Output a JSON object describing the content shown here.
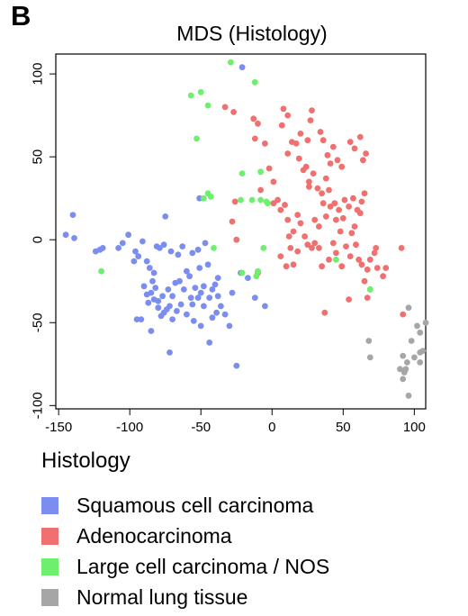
{
  "panel_label": "B",
  "chart_data": {
    "type": "scatter",
    "title": "MDS (Histology)",
    "xlabel": "",
    "ylabel": "",
    "xlim": [
      -152,
      108
    ],
    "ylim": [
      -102,
      112
    ],
    "xticks": [
      -150,
      -100,
      -50,
      0,
      50,
      100
    ],
    "xtick_labels": [
      "-150",
      "-100",
      "-50",
      "0",
      "50",
      "100"
    ],
    "yticks": [
      -100,
      -50,
      0,
      50,
      100
    ],
    "ytick_labels": [
      "-100",
      "-50",
      "0",
      "50",
      "100"
    ],
    "grid": false,
    "legend": {
      "title": "Histology",
      "placement": "bottom",
      "entries": [
        {
          "label": "Squamous cell carcinoma",
          "color": "#7b8df0"
        },
        {
          "label": "Adenocarcinoma",
          "color": "#f07070"
        },
        {
          "label": "Large cell carcinoma / NOS",
          "color": "#6ef06e"
        },
        {
          "label": "Normal lung tissue",
          "color": "#a6a6a6"
        }
      ]
    },
    "series": [
      {
        "name": "Squamous cell carcinoma",
        "color": "#7b8df0",
        "points": [
          [
            -145,
            3
          ],
          [
            -140,
            15
          ],
          [
            -139,
            1
          ],
          [
            -124,
            -7
          ],
          [
            -121,
            -6
          ],
          [
            -119,
            -5
          ],
          [
            -108,
            -5
          ],
          [
            -105,
            -2
          ],
          [
            -101,
            3
          ],
          [
            -97,
            -13
          ],
          [
            -96,
            -7
          ],
          [
            -94,
            -10
          ],
          [
            -91,
            -1
          ],
          [
            -88,
            -13
          ],
          [
            -86,
            -17
          ],
          [
            -83,
            -20
          ],
          [
            -81,
            -4
          ],
          [
            -79,
            -5
          ],
          [
            -76,
            -3
          ],
          [
            -71,
            -7
          ],
          [
            -66,
            -9
          ],
          [
            -63,
            -4
          ],
          [
            -56,
            -8
          ],
          [
            -52,
            -6
          ],
          [
            -47,
            -2
          ],
          [
            -84,
            -25
          ],
          [
            -82,
            -29
          ],
          [
            -85,
            -32
          ],
          [
            -88,
            -33
          ],
          [
            -90,
            -28
          ],
          [
            -87,
            -38
          ],
          [
            -83,
            -36
          ],
          [
            -80,
            -37
          ],
          [
            -77,
            -34
          ],
          [
            -73,
            -30
          ],
          [
            -68,
            -26
          ],
          [
            -65,
            -25
          ],
          [
            -62,
            -30
          ],
          [
            -58,
            -22
          ],
          [
            -54,
            -29
          ],
          [
            -52,
            -35
          ],
          [
            -50,
            -32
          ],
          [
            -48,
            -40
          ],
          [
            -44,
            -35
          ],
          [
            -42,
            -30
          ],
          [
            -40,
            -27
          ],
          [
            -38,
            -34
          ],
          [
            -36,
            -40
          ],
          [
            -33,
            -45
          ],
          [
            -30,
            -52
          ],
          [
            -45,
            -15
          ],
          [
            -51,
            -17
          ],
          [
            -60,
            -19
          ],
          [
            -70,
            -34
          ],
          [
            -72,
            -40
          ],
          [
            -74,
            -42
          ],
          [
            -76,
            -44
          ],
          [
            -78,
            -46
          ],
          [
            -92,
            -48
          ],
          [
            -95,
            -48
          ],
          [
            -85,
            -55
          ],
          [
            -80,
            -41
          ],
          [
            -70,
            -48
          ],
          [
            -67,
            -43
          ],
          [
            -72,
            -68
          ],
          [
            -64,
            -39
          ],
          [
            -60,
            -45
          ],
          [
            -56,
            -39
          ],
          [
            -55,
            -49
          ],
          [
            -50,
            -52
          ],
          [
            -44,
            -62
          ],
          [
            -42,
            -47
          ],
          [
            -39,
            -44
          ],
          [
            -28,
            -32
          ],
          [
            -22,
            -20
          ],
          [
            -17,
            -23
          ],
          [
            -12,
            -35
          ],
          [
            -5,
            -40
          ],
          [
            -57,
            -35
          ],
          [
            -25,
            -76
          ],
          [
            -48,
            -28
          ],
          [
            -38,
            -23
          ],
          [
            -51,
            25
          ],
          [
            -75,
            14
          ],
          [
            -21,
            104
          ]
        ]
      },
      {
        "name": "Adenocarcinoma",
        "color": "#f07070",
        "points": [
          [
            -33,
            80
          ],
          [
            -27,
            77
          ],
          [
            -13,
            73
          ],
          [
            -10,
            70
          ],
          [
            -12,
            61
          ],
          [
            -5,
            58
          ],
          [
            -2,
            43
          ],
          [
            1,
            35
          ],
          [
            7,
            69
          ],
          [
            8,
            79
          ],
          [
            11,
            75
          ],
          [
            14,
            59
          ],
          [
            17,
            58
          ],
          [
            20,
            64
          ],
          [
            24,
            44
          ],
          [
            25,
            60
          ],
          [
            27,
            72
          ],
          [
            28,
            78
          ],
          [
            34,
            65
          ],
          [
            36,
            60
          ],
          [
            39,
            51
          ],
          [
            41,
            46
          ],
          [
            43,
            56
          ],
          [
            46,
            48
          ],
          [
            49,
            44
          ],
          [
            55,
            59
          ],
          [
            58,
            55
          ],
          [
            62,
            62
          ],
          [
            64,
            48
          ],
          [
            66,
            52
          ],
          [
            11,
            52
          ],
          [
            19,
            49
          ],
          [
            22,
            42
          ],
          [
            26,
            35
          ],
          [
            29,
            40
          ],
          [
            32,
            31
          ],
          [
            35,
            28
          ],
          [
            38,
            37
          ],
          [
            40,
            30
          ],
          [
            44,
            22
          ],
          [
            47,
            18
          ],
          [
            51,
            24
          ],
          [
            54,
            20
          ],
          [
            57,
            25
          ],
          [
            60,
            18
          ],
          [
            62,
            16
          ],
          [
            65,
            28
          ],
          [
            63,
            23
          ],
          [
            4,
            24
          ],
          [
            6,
            18
          ],
          [
            9,
            21
          ],
          [
            11,
            12
          ],
          [
            12,
            2
          ],
          [
            13,
            -5
          ],
          [
            15,
            5
          ],
          [
            18,
            15
          ],
          [
            20,
            10
          ],
          [
            23,
            2
          ],
          [
            25,
            -3
          ],
          [
            28,
            -5
          ],
          [
            30,
            12
          ],
          [
            33,
            8
          ],
          [
            36,
            22
          ],
          [
            38,
            14
          ],
          [
            41,
            20
          ],
          [
            43,
            -2
          ],
          [
            45,
            -8
          ],
          [
            48,
            5
          ],
          [
            50,
            13
          ],
          [
            52,
            -4
          ],
          [
            55,
            -10
          ],
          [
            58,
            8
          ],
          [
            61,
            -12
          ],
          [
            63,
            -15
          ],
          [
            67,
            -18
          ],
          [
            69,
            -12
          ],
          [
            72,
            -8
          ],
          [
            74,
            -17
          ],
          [
            78,
            -22
          ],
          [
            80,
            -17
          ],
          [
            73,
            -5
          ],
          [
            65,
            -25
          ],
          [
            67,
            -35
          ],
          [
            69,
            -30
          ],
          [
            54,
            -36
          ],
          [
            37,
            -44
          ],
          [
            91,
            -5
          ],
          [
            92,
            -45
          ],
          [
            -26,
            23
          ],
          [
            -28,
            11
          ],
          [
            -25,
            0
          ],
          [
            -10,
            -20
          ],
          [
            15,
            -15
          ],
          [
            10,
            -16
          ],
          [
            35,
            -16
          ],
          [
            26,
            32
          ],
          [
            30,
            -2
          ],
          [
            40,
            -12
          ],
          [
            -8,
            30
          ],
          [
            1,
            22
          ],
          [
            6,
            -10
          ],
          [
            18,
            -7
          ],
          [
            33,
            -5
          ],
          [
            45,
            12
          ],
          [
            49,
            -16
          ],
          [
            56,
            4
          ],
          [
            59,
            -3
          ]
        ]
      },
      {
        "name": "Large cell carcinoma / NOS",
        "color": "#6ef06e",
        "points": [
          [
            -29,
            107
          ],
          [
            -12,
            95
          ],
          [
            -57,
            87
          ],
          [
            -50,
            89
          ],
          [
            -45,
            81
          ],
          [
            -53,
            61
          ],
          [
            -8,
            41
          ],
          [
            -21,
            40
          ],
          [
            -48,
            25
          ],
          [
            -45,
            28
          ],
          [
            -43,
            26
          ],
          [
            -22,
            24
          ],
          [
            -14,
            24
          ],
          [
            -8,
            24
          ],
          [
            -4,
            23
          ],
          [
            -3,
            22
          ],
          [
            -21,
            -20
          ],
          [
            -11,
            -22
          ],
          [
            -6,
            -5
          ],
          [
            -10,
            -19
          ],
          [
            -41,
            -5
          ],
          [
            -120,
            -19
          ],
          [
            45,
            -12
          ],
          [
            69,
            -30
          ]
        ]
      },
      {
        "name": "Normal lung tissue",
        "color": "#a6a6a6",
        "points": [
          [
            96,
            -41
          ],
          [
            102,
            -52
          ],
          [
            104,
            -56
          ],
          [
            108,
            -50
          ],
          [
            98,
            -61
          ],
          [
            104,
            -68
          ],
          [
            100,
            -71
          ],
          [
            106,
            -67
          ],
          [
            104,
            -74
          ],
          [
            92,
            -70
          ],
          [
            95,
            -74
          ],
          [
            94,
            -78
          ],
          [
            93,
            -80
          ],
          [
            92,
            -84
          ],
          [
            90,
            -78
          ],
          [
            96,
            -94
          ],
          [
            68,
            -61
          ],
          [
            69,
            -71
          ]
        ]
      }
    ]
  }
}
